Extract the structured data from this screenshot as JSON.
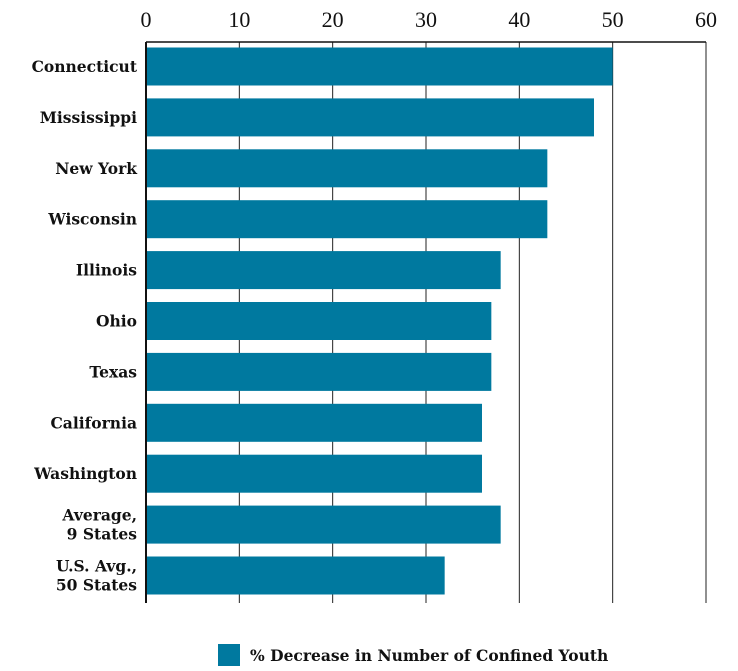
{
  "chart_data": {
    "type": "bar",
    "orientation": "horizontal",
    "categories": [
      "Connecticut",
      "Mississippi",
      "New York",
      "Wisconsin",
      "Illinois",
      "Ohio",
      "Texas",
      "California",
      "Washington",
      "Average,\n9 States",
      "U.S. Avg.,\n50 States"
    ],
    "series": [
      {
        "name": "% Decrease in Number of Confined Youth",
        "values": [
          50,
          48,
          43,
          43,
          38,
          37,
          37,
          36,
          36,
          38,
          32
        ]
      }
    ],
    "xlim": [
      0,
      60
    ],
    "xticks": [
      0,
      10,
      20,
      30,
      40,
      50,
      60
    ],
    "x_axis_position": "top",
    "grid": "vertical",
    "legend": "bottom",
    "colors": {
      "bar": "#00799f",
      "grid": "#222222",
      "axis": "#111111"
    },
    "title": "",
    "xlabel": "",
    "ylabel": ""
  }
}
